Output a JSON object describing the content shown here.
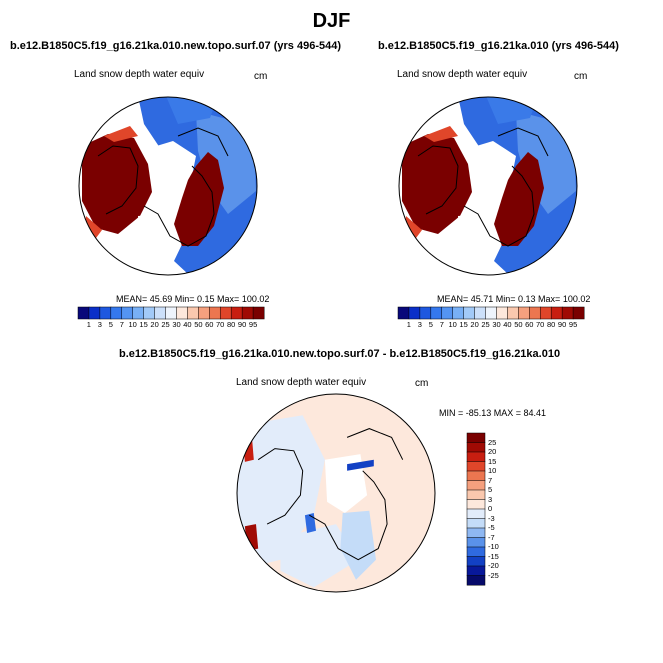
{
  "title": "DJF",
  "panels": [
    {
      "case": "b.e12.B1850C5.f19_g16.21ka.010.new.topo.surf.07 (yrs 496-544)",
      "variable": "Land snow depth water equiv",
      "units": "cm",
      "stats": "MEAN=  45.69  Min=   0.15  Max= 100.02"
    },
    {
      "case": "b.e12.B1850C5.f19_g16.21ka.010 (yrs 496-544)",
      "variable": "Land snow depth water equiv",
      "units": "cm",
      "stats": "MEAN=  45.71  Min=   0.13  Max= 100.02"
    }
  ],
  "difference": {
    "case": "b.e12.B1850C5.f19_g16.21ka.010.new.topo.surf.07 - b.e12.B1850C5.f19_g16.21ka.010",
    "variable": "Land snow depth water equiv",
    "units": "cm",
    "stats": "MIN = -85.13 MAX =  84.41"
  },
  "chart_data": [
    {
      "type": "heatmap",
      "projection": "north polar stereographic",
      "colorbar": {
        "orientation": "horizontal",
        "levels": [
          1,
          3,
          5,
          7,
          10,
          15,
          20,
          25,
          30,
          40,
          50,
          60,
          70,
          80,
          90,
          95
        ],
        "colors": [
          "#08087a",
          "#0a2fc8",
          "#1e58e0",
          "#3478ee",
          "#5494f2",
          "#78b0f6",
          "#a2caf8",
          "#cce0fa",
          "#eef4fc",
          "#fde8dc",
          "#fac8ae",
          "#f5a07e",
          "#ec7650",
          "#e0462a",
          "#c81e10",
          "#a00a04",
          "#7a0000"
        ]
      }
    },
    {
      "type": "heatmap",
      "projection": "north polar stereographic",
      "colorbar": {
        "orientation": "horizontal",
        "levels": [
          1,
          3,
          5,
          7,
          10,
          15,
          20,
          25,
          30,
          40,
          50,
          60,
          70,
          80,
          90,
          95
        ],
        "colors": [
          "#08087a",
          "#0a2fc8",
          "#1e58e0",
          "#3478ee",
          "#5494f2",
          "#78b0f6",
          "#a2caf8",
          "#cce0fa",
          "#eef4fc",
          "#fde8dc",
          "#fac8ae",
          "#f5a07e",
          "#ec7650",
          "#e0462a",
          "#c81e10",
          "#a00a04",
          "#7a0000"
        ]
      }
    },
    {
      "type": "heatmap",
      "projection": "north polar stereographic",
      "colorbar": {
        "orientation": "vertical",
        "levels": [
          25,
          20,
          15,
          10,
          7,
          5,
          3,
          0,
          -3,
          -5,
          -7,
          -10,
          -15,
          -20,
          -25
        ],
        "colors": [
          "#7a0000",
          "#a00a04",
          "#c81e10",
          "#e0462a",
          "#ec7650",
          "#f5a07e",
          "#fac8ae",
          "#fde8dc",
          "#e2ecfa",
          "#c4dcf8",
          "#8fb8f2",
          "#5a92ea",
          "#2f6ae0",
          "#1240c4",
          "#08189a",
          "#060a6a"
        ]
      }
    }
  ]
}
